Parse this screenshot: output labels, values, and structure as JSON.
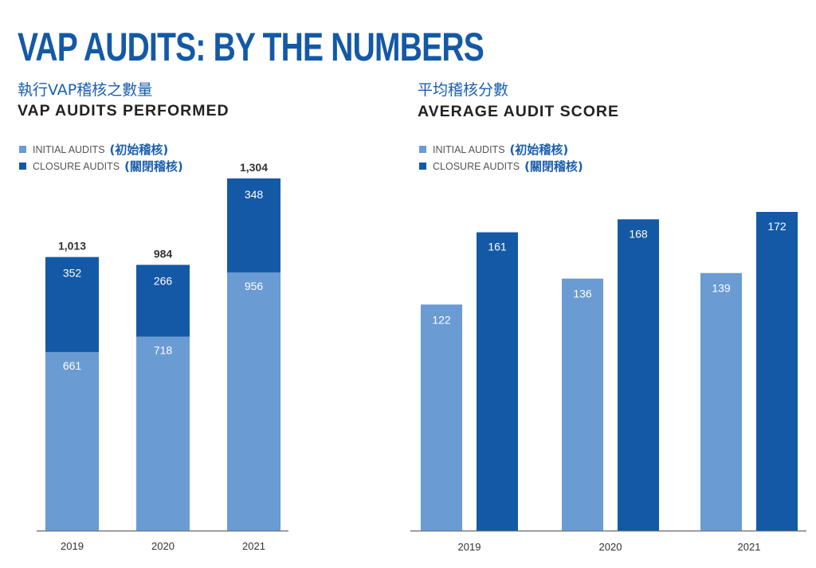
{
  "title": "VAP AUDITS: BY THE NUMBERS",
  "colors": {
    "initial": "#6a9bd2",
    "closure": "#1459a6",
    "title": "#1459a6",
    "axis": "#777777"
  },
  "chart_data": [
    {
      "type": "bar",
      "stacked": true,
      "title_zh": "執行VAP稽核之數量",
      "title": "VAP AUDITS PERFORMED",
      "categories": [
        "2019",
        "2020",
        "2021"
      ],
      "series": [
        {
          "name": "INITIAL AUDITS",
          "name_zh": "(初始稽核)",
          "values": [
            661,
            718,
            956
          ],
          "labels": [
            "661",
            "718",
            "956"
          ]
        },
        {
          "name": "CLOSURE AUDITS",
          "name_zh": "(關閉稽核)",
          "values": [
            352,
            266,
            348
          ],
          "labels": [
            "352",
            "266",
            "348"
          ]
        }
      ],
      "totals": [
        "1,013",
        "984",
        "1,304"
      ],
      "ylim": [
        0,
        1304
      ],
      "legend": "top-left",
      "grid": false
    },
    {
      "type": "bar",
      "stacked": false,
      "title_zh": "平均稽核分數",
      "title": "AVERAGE AUDIT SCORE",
      "categories": [
        "2019",
        "2020",
        "2021"
      ],
      "series": [
        {
          "name": "INITIAL AUDITS",
          "name_zh": "(初始稽核)",
          "values": [
            122,
            136,
            139
          ],
          "labels": [
            "122",
            "136",
            "139"
          ]
        },
        {
          "name": "CLOSURE AUDITS",
          "name_zh": "(關閉稽核)",
          "values": [
            161,
            168,
            172
          ],
          "labels": [
            "161",
            "168",
            "172"
          ]
        }
      ],
      "ylim": [
        0,
        172
      ],
      "legend": "top-left",
      "grid": false
    }
  ]
}
